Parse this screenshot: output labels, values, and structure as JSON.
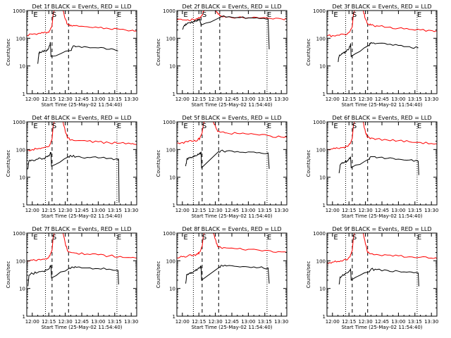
{
  "xlabel": "Start Time (25-May-02 11:54:40)",
  "ylabel": "Counts/sec",
  "xticks": [
    {
      "t": 0,
      "label": "12:00"
    },
    {
      "t": 15,
      "label": "12:15"
    },
    {
      "t": 30,
      "label": "12:30"
    },
    {
      "t": 45,
      "label": "12:45"
    },
    {
      "t": 60,
      "label": "13:00"
    },
    {
      "t": 75,
      "label": "13:15"
    },
    {
      "t": 90,
      "label": "13:30"
    }
  ],
  "yticks": [
    {
      "v": 1,
      "label": "1"
    },
    {
      "v": 10,
      "label": "10"
    },
    {
      "v": 100,
      "label": "100"
    },
    {
      "v": 1000,
      "label": "1000"
    }
  ],
  "markers": [
    {
      "t": 3,
      "label": "E"
    },
    {
      "t": 20,
      "label": "S"
    },
    {
      "t": 79,
      "label": "E"
    }
  ],
  "colors": {
    "events": "#000000",
    "lld": "#ff0000"
  },
  "chart_data": [
    {
      "type": "line",
      "title": "Det 1f BLACK = Events, RED = LLD",
      "xlim": [
        -5,
        95
      ],
      "ylim": [
        1,
        1000
      ],
      "log_y": true,
      "vlines": {
        "dotted": [
          12,
          77
        ],
        "dashed": [
          18,
          33
        ]
      },
      "series": [
        {
          "color": "#ff0000",
          "x": [
            -5,
            0,
            5,
            10,
            14,
            16,
            18,
            19,
            20,
            28,
            30,
            32,
            35,
            40,
            50,
            60,
            70,
            80,
            90,
            95
          ],
          "y": [
            130,
            140,
            145,
            155,
            165,
            190,
            290,
            750,
            1000,
            1000,
            500,
            320,
            300,
            290,
            260,
            240,
            220,
            210,
            190,
            180
          ]
        },
        {
          "color": "#000000",
          "x": [
            5,
            6,
            7,
            10,
            12,
            14,
            16,
            16.5,
            17,
            35,
            37,
            40,
            50,
            60,
            70,
            78
          ],
          "y": [
            12,
            28,
            32,
            34,
            35,
            40,
            55,
            70,
            22,
            36,
            52,
            50,
            48,
            45,
            40,
            35
          ]
        }
      ]
    },
    {
      "type": "line",
      "title": "Det 2f BLACK = Events, RED = LLD",
      "xlim": [
        -5,
        95
      ],
      "ylim": [
        1,
        1000
      ],
      "log_y": true,
      "vlines": {
        "dotted": [
          10,
          77
        ],
        "dashed": [
          17,
          34
        ]
      },
      "series": [
        {
          "color": "#ff0000",
          "x": [
            -5,
            0,
            5,
            10,
            14,
            16,
            18,
            19,
            20,
            30,
            32,
            34,
            36,
            40,
            50,
            60,
            70,
            80,
            90,
            95
          ],
          "y": [
            450,
            460,
            470,
            480,
            500,
            560,
            700,
            900,
            1000,
            1000,
            850,
            650,
            600,
            580,
            560,
            550,
            530,
            520,
            500,
            490
          ]
        },
        {
          "color": "#000000",
          "x": [
            0,
            2,
            4,
            6,
            8,
            10,
            12,
            14,
            16,
            17,
            34,
            36,
            40,
            50,
            60,
            70,
            78,
            79
          ],
          "y": [
            210,
            300,
            330,
            360,
            380,
            400,
            420,
            440,
            480,
            300,
            560,
            600,
            580,
            560,
            540,
            520,
            500,
            40
          ]
        }
      ]
    },
    {
      "type": "line",
      "title": "Det 3f BLACK = Events, RED = LLD",
      "xlim": [
        -5,
        95
      ],
      "ylim": [
        1,
        1000
      ],
      "log_y": true,
      "vlines": {
        "dotted": [
          12,
          77
        ],
        "dashed": [
          18,
          32
        ]
      },
      "series": [
        {
          "color": "#ff0000",
          "x": [
            -5,
            0,
            5,
            10,
            14,
            16,
            18,
            19,
            20,
            28,
            30,
            32,
            35,
            40,
            50,
            60,
            70,
            80,
            90,
            95
          ],
          "y": [
            120,
            125,
            130,
            140,
            150,
            180,
            260,
            700,
            1000,
            1000,
            500,
            330,
            300,
            280,
            250,
            230,
            210,
            200,
            190,
            180
          ]
        },
        {
          "color": "#000000",
          "x": [
            5,
            6,
            8,
            10,
            12,
            14,
            16,
            16.5,
            17,
            33,
            35,
            40,
            50,
            60,
            70,
            78
          ],
          "y": [
            14,
            22,
            26,
            30,
            32,
            38,
            50,
            65,
            22,
            55,
            70,
            65,
            60,
            55,
            50,
            45
          ]
        }
      ]
    },
    {
      "type": "line",
      "title": "Det 4f BLACK = Events, RED = LLD",
      "xlim": [
        -5,
        95
      ],
      "ylim": [
        1,
        1000
      ],
      "log_y": true,
      "vlines": {
        "dotted": [
          12,
          77
        ],
        "dashed": [
          18,
          32
        ]
      },
      "series": [
        {
          "color": "#ff0000",
          "x": [
            -5,
            0,
            5,
            10,
            14,
            16,
            18,
            19,
            20,
            28,
            30,
            32,
            35,
            40,
            50,
            60,
            70,
            80,
            90,
            95
          ],
          "y": [
            95,
            100,
            105,
            115,
            125,
            150,
            240,
            700,
            1000,
            1000,
            450,
            260,
            220,
            210,
            200,
            190,
            175,
            170,
            160,
            150
          ]
        },
        {
          "color": "#000000",
          "x": [
            -4,
            -3,
            0,
            5,
            10,
            14,
            16,
            17,
            17.5,
            33,
            35,
            40,
            50,
            60,
            70,
            78,
            78.5,
            79
          ],
          "y": [
            20,
            38,
            42,
            45,
            48,
            55,
            68,
            80,
            25,
            55,
            60,
            55,
            52,
            50,
            48,
            45,
            40,
            1.2
          ]
        }
      ]
    },
    {
      "type": "line",
      "title": "Det 5f BLACK = Events, RED = LLD",
      "xlim": [
        -5,
        95
      ],
      "ylim": [
        1,
        1000
      ],
      "log_y": true,
      "vlines": {
        "dotted": [
          10,
          77
        ],
        "dashed": [
          18,
          33
        ]
      },
      "series": [
        {
          "color": "#ff0000",
          "x": [
            -5,
            0,
            5,
            10,
            14,
            16,
            18,
            19,
            20,
            28,
            30,
            32,
            35,
            40,
            50,
            60,
            70,
            80,
            90,
            95
          ],
          "y": [
            170,
            180,
            190,
            200,
            220,
            260,
            400,
            800,
            1000,
            1000,
            700,
            450,
            420,
            400,
            380,
            360,
            330,
            310,
            280,
            270
          ]
        },
        {
          "color": "#000000",
          "x": [
            3,
            4,
            6,
            8,
            10,
            12,
            14,
            16,
            17,
            17.5,
            33,
            35,
            40,
            50,
            60,
            70,
            78,
            79
          ],
          "y": [
            25,
            45,
            50,
            52,
            55,
            60,
            68,
            75,
            80,
            22,
            85,
            90,
            88,
            85,
            82,
            78,
            75,
            20
          ]
        }
      ]
    },
    {
      "type": "line",
      "title": "Det 6f BLACK = Events, RED = LLD",
      "xlim": [
        -5,
        95
      ],
      "ylim": [
        1,
        1000
      ],
      "log_y": true,
      "vlines": {
        "dotted": [
          12,
          77
        ],
        "dashed": [
          18,
          32
        ]
      },
      "series": [
        {
          "color": "#ff0000",
          "x": [
            -5,
            0,
            5,
            10,
            14,
            16,
            18,
            19,
            20,
            28,
            30,
            32,
            35,
            40,
            50,
            60,
            70,
            80,
            90,
            95
          ],
          "y": [
            100,
            105,
            110,
            120,
            130,
            160,
            250,
            700,
            1000,
            1000,
            420,
            280,
            260,
            240,
            220,
            210,
            190,
            180,
            165,
            160
          ]
        },
        {
          "color": "#000000",
          "x": [
            6,
            7,
            9,
            11,
            13,
            15,
            16.5,
            17,
            33,
            35,
            40,
            50,
            60,
            70,
            78,
            78.5
          ],
          "y": [
            14,
            28,
            32,
            35,
            38,
            45,
            55,
            22,
            45,
            55,
            50,
            48,
            45,
            42,
            38,
            12
          ]
        }
      ]
    },
    {
      "type": "line",
      "title": "Det 7f BLACK = Events, RED = LLD",
      "xlim": [
        -5,
        95
      ],
      "ylim": [
        1,
        1000
      ],
      "log_y": true,
      "vlines": {
        "dotted": [
          12,
          77
        ],
        "dashed": [
          18,
          33
        ]
      },
      "series": [
        {
          "color": "#ff0000",
          "x": [
            -5,
            0,
            5,
            10,
            14,
            16,
            18,
            19,
            20,
            28,
            30,
            32,
            35,
            40,
            50,
            60,
            70,
            80,
            90,
            95
          ],
          "y": [
            100,
            105,
            110,
            115,
            125,
            150,
            240,
            700,
            1000,
            1000,
            430,
            230,
            200,
            190,
            175,
            165,
            150,
            145,
            130,
            125
          ]
        },
        {
          "color": "#000000",
          "x": [
            -4,
            -3,
            0,
            5,
            10,
            14,
            16,
            17,
            17.5,
            34,
            36,
            40,
            50,
            60,
            70,
            78,
            78.5
          ],
          "y": [
            12,
            30,
            35,
            38,
            42,
            48,
            58,
            70,
            24,
            55,
            60,
            58,
            55,
            52,
            50,
            45,
            14
          ]
        }
      ]
    },
    {
      "type": "line",
      "title": "Det 8f BLACK = Events, RED = LLD",
      "xlim": [
        -5,
        95
      ],
      "ylim": [
        1,
        1000
      ],
      "log_y": true,
      "vlines": {
        "dotted": [
          10,
          77
        ],
        "dashed": [
          18,
          33
        ]
      },
      "series": [
        {
          "color": "#ff0000",
          "x": [
            -5,
            0,
            5,
            10,
            14,
            16,
            18,
            19,
            20,
            28,
            30,
            32,
            35,
            40,
            50,
            60,
            70,
            80,
            90,
            95
          ],
          "y": [
            130,
            140,
            150,
            160,
            175,
            210,
            330,
            800,
            1000,
            1000,
            600,
            330,
            300,
            290,
            270,
            260,
            240,
            230,
            210,
            200
          ]
        },
        {
          "color": "#000000",
          "x": [
            3,
            4,
            6,
            8,
            10,
            12,
            14,
            16,
            17,
            17.5,
            34,
            36,
            40,
            50,
            60,
            70,
            78,
            79
          ],
          "y": [
            15,
            32,
            35,
            38,
            40,
            45,
            50,
            58,
            65,
            20,
            60,
            68,
            65,
            62,
            60,
            57,
            55,
            15
          ]
        }
      ]
    },
    {
      "type": "line",
      "title": "Det 9f BLACK = Events, RED = LLD",
      "xlim": [
        -5,
        95
      ],
      "ylim": [
        1,
        1000
      ],
      "log_y": true,
      "vlines": {
        "dotted": [
          12,
          77
        ],
        "dashed": [
          18,
          32
        ]
      },
      "series": [
        {
          "color": "#ff0000",
          "x": [
            -5,
            0,
            5,
            10,
            14,
            16,
            18,
            19,
            20,
            28,
            30,
            32,
            35,
            40,
            50,
            60,
            70,
            80,
            90,
            95
          ],
          "y": [
            85,
            90,
            95,
            105,
            115,
            140,
            230,
            650,
            1000,
            1000,
            400,
            200,
            180,
            170,
            160,
            150,
            140,
            135,
            125,
            120
          ]
        },
        {
          "color": "#000000",
          "x": [
            6,
            7,
            9,
            11,
            13,
            15,
            16.5,
            17,
            33,
            35,
            40,
            50,
            60,
            70,
            78,
            78.5
          ],
          "y": [
            14,
            26,
            30,
            33,
            36,
            42,
            50,
            20,
            40,
            50,
            48,
            45,
            42,
            40,
            36,
            12
          ]
        }
      ]
    }
  ]
}
